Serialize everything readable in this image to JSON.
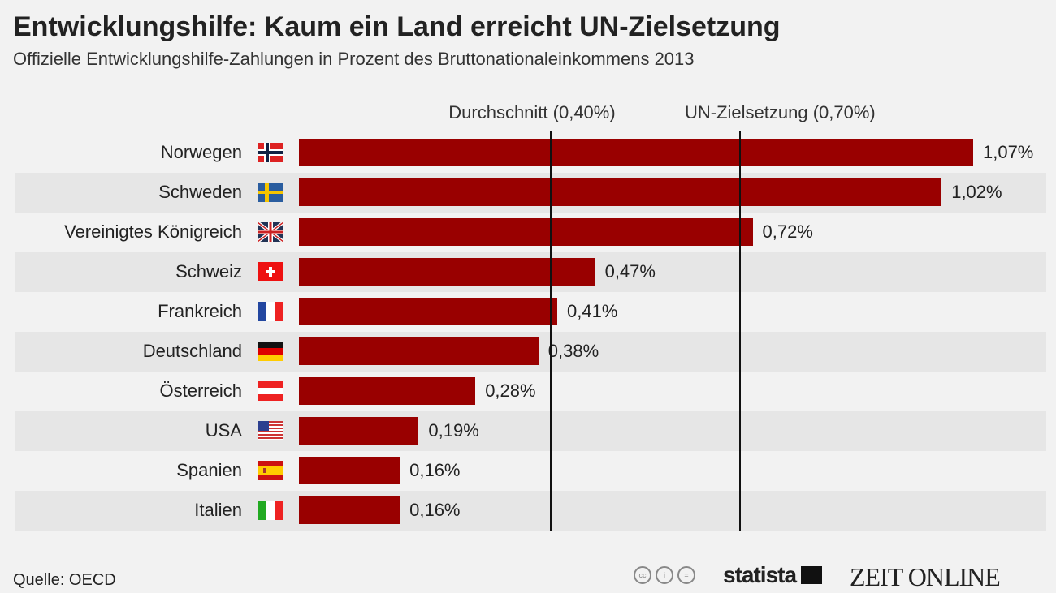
{
  "title": "Entwicklungshilfe: Kaum ein Land erreicht UN-Zielsetzung",
  "subtitle": "Offizielle Entwicklungshilfe-Zahlungen in Prozent des Bruttonationaleinkommens 2013",
  "source": "Quelle: OECD",
  "brands": {
    "statista": "statista",
    "zeit": "ZEIT ONLINE"
  },
  "colors": {
    "bar": "#990000",
    "background": "#f2f2f2",
    "stripe": "#e6e6e6"
  },
  "chart_data": {
    "type": "bar",
    "orientation": "horizontal",
    "categories": [
      "Norwegen",
      "Schweden",
      "Vereinigtes Königreich",
      "Schweiz",
      "Frankreich",
      "Deutschland",
      "Österreich",
      "USA",
      "Spanien",
      "Italien"
    ],
    "flags": [
      "no",
      "se",
      "gb",
      "ch",
      "fr",
      "de",
      "at",
      "us",
      "es",
      "it"
    ],
    "values": [
      1.07,
      1.02,
      0.72,
      0.47,
      0.41,
      0.38,
      0.28,
      0.19,
      0.16,
      0.16
    ],
    "value_labels": [
      "1,07%",
      "1,02%",
      "0,72%",
      "0,47%",
      "0,41%",
      "0,38%",
      "0,28%",
      "0,19%",
      "0,16%",
      "0,16%"
    ],
    "reference_lines": [
      {
        "label": "Durchschnitt (0,40%)",
        "value": 0.4
      },
      {
        "label": "UN-Zielsetzung (0,70%)",
        "value": 0.7
      }
    ],
    "unit": "%",
    "xlim": [
      0,
      1.07
    ]
  }
}
